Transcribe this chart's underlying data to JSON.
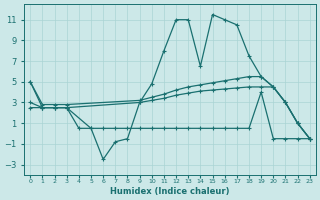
{
  "color": "#1a7070",
  "bg_color": "#cce8e8",
  "grid_color": "#aad4d4",
  "xlabel": "Humidex (Indice chaleur)",
  "ylim": [
    -4,
    12.5
  ],
  "yticks": [
    -3,
    -1,
    1,
    3,
    5,
    7,
    9,
    11
  ],
  "xlim": [
    -0.5,
    23.5
  ],
  "line_peak_x": [
    0,
    1,
    2,
    3,
    5,
    6,
    7,
    8,
    9,
    10,
    11,
    12,
    13,
    14,
    15,
    16,
    17,
    18,
    19,
    20,
    21,
    22,
    23
  ],
  "line_peak_y": [
    5.0,
    2.5,
    2.5,
    2.5,
    0.5,
    -2.5,
    -0.8,
    -0.5,
    3.0,
    4.8,
    8.0,
    11.0,
    11.0,
    6.5,
    11.5,
    11.0,
    10.5,
    7.5,
    5.5,
    4.5,
    3.0,
    1.0,
    -0.5
  ],
  "line_flat1_x": [
    0,
    1,
    2,
    3,
    9,
    10,
    11,
    12,
    13,
    14,
    15,
    16,
    17,
    18,
    19,
    20,
    21,
    22,
    23
  ],
  "line_flat1_y": [
    5.0,
    2.8,
    2.8,
    2.8,
    3.2,
    3.5,
    3.8,
    4.2,
    4.5,
    4.7,
    4.9,
    5.1,
    5.3,
    5.5,
    5.5,
    4.5,
    3.0,
    1.0,
    -0.5
  ],
  "line_flat2_x": [
    0,
    1,
    2,
    3,
    9,
    10,
    11,
    12,
    13,
    14,
    15,
    16,
    17,
    18,
    19,
    20,
    21,
    22,
    23
  ],
  "line_flat2_y": [
    3.0,
    2.5,
    2.5,
    2.5,
    3.0,
    3.2,
    3.4,
    3.7,
    3.9,
    4.1,
    4.2,
    4.3,
    4.4,
    4.5,
    4.5,
    4.5,
    3.0,
    1.0,
    -0.5
  ],
  "line_flat3_x": [
    0,
    1,
    2,
    3,
    4,
    5,
    6,
    7,
    8,
    9,
    10,
    11,
    12,
    13,
    14,
    15,
    16,
    17,
    18,
    19,
    20,
    21,
    22,
    23
  ],
  "line_flat3_y": [
    2.5,
    2.5,
    2.5,
    2.5,
    0.5,
    0.5,
    0.5,
    0.5,
    0.5,
    0.5,
    0.5,
    0.5,
    0.5,
    0.5,
    0.5,
    0.5,
    0.5,
    0.5,
    0.5,
    4.0,
    -0.5,
    -0.5,
    -0.5,
    -0.5
  ]
}
